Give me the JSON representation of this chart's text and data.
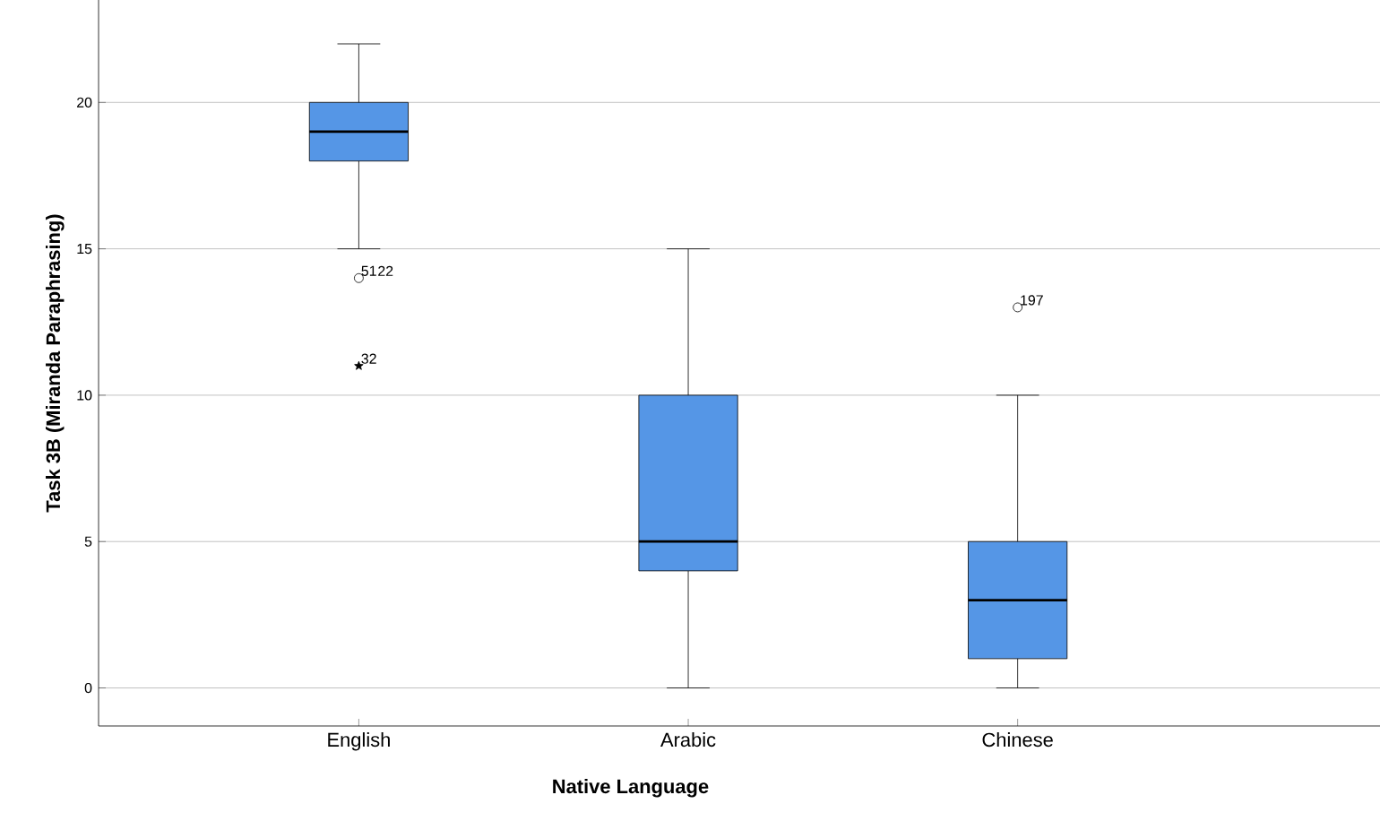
{
  "chart_data": {
    "type": "box",
    "xlabel": "Native Language",
    "ylabel": "Task 3B (Miranda Paraphrasing)",
    "categories": [
      "English",
      "Arabic",
      "Chinese"
    ],
    "color": "#5596e6",
    "boxes": [
      {
        "low": 15,
        "q1": 18,
        "median": 19,
        "q3": 20,
        "high": 22
      },
      {
        "low": 0,
        "q1": 4,
        "median": 5,
        "q3": 10,
        "high": 15
      },
      {
        "low": 0,
        "q1": 1,
        "median": 3,
        "q3": 5,
        "high": 10
      }
    ],
    "series": [
      {
        "type": "scatter",
        "marker": "circle",
        "color": "#000000",
        "x": [
          "English",
          "Chinese"
        ],
        "values": [
          14,
          13
        ]
      },
      {
        "type": "scatter",
        "marker": "star",
        "color": "#000000",
        "x": [
          "English"
        ],
        "values": [
          11
        ]
      }
    ],
    "ylim": [
      -1.3,
      23.5
    ],
    "yticks": [
      0,
      5,
      10,
      15,
      20
    ],
    "grid": "y",
    "annotations": [
      {
        "text": "51",
        "x": "English",
        "y": 14
      },
      {
        "text": "22",
        "x": "English",
        "y": 14
      },
      {
        "text": "32",
        "x": "English",
        "y": 11
      },
      {
        "text": "197",
        "x": "Chinese",
        "y": 13
      }
    ]
  }
}
